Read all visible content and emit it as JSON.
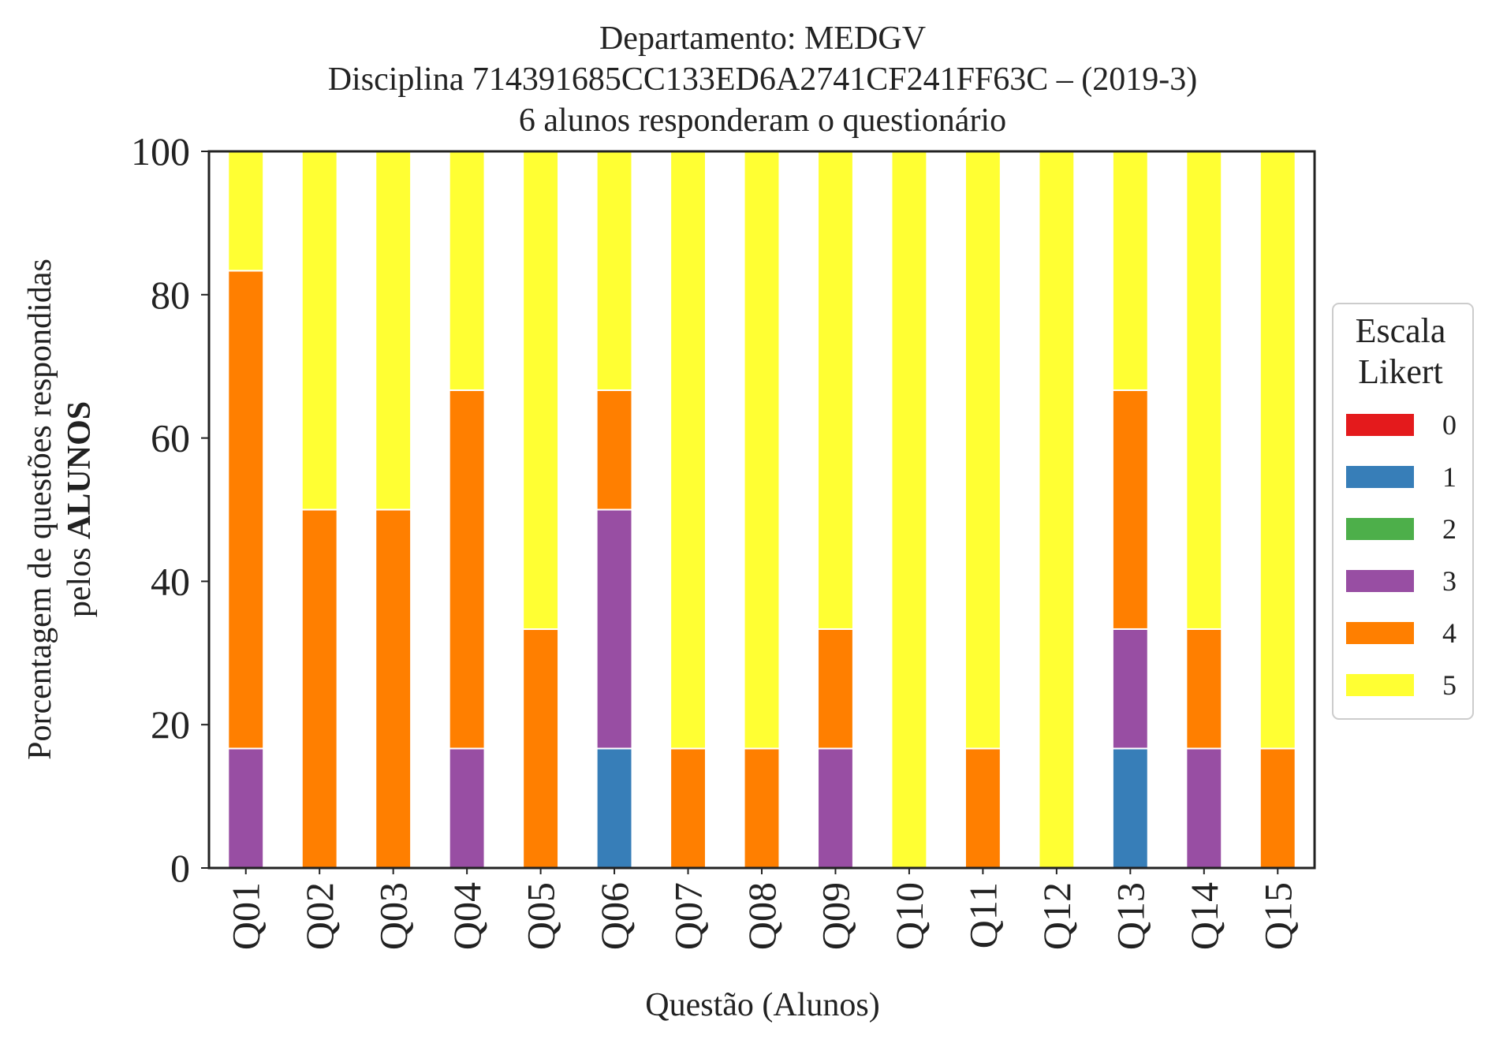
{
  "chart_data": {
    "type": "bar",
    "stacked": true,
    "title_lines": [
      "Departamento: MEDGV",
      "Disciplina 714391685CC133ED6A2741CF241FF63C – (2019-3)",
      "6 alunos responderam o questionário"
    ],
    "xlabel": "Questão (Alunos)",
    "ylabel_line1": "Porcentagem de questões respondidas",
    "ylabel_line2_prefix": "pelos ",
    "ylabel_line2_bold": "ALUNOS",
    "ylim": [
      0,
      100
    ],
    "yticks": [
      "0",
      "20",
      "40",
      "60",
      "80",
      "100"
    ],
    "grid": false,
    "categories": [
      "Q01",
      "Q02",
      "Q03",
      "Q04",
      "Q05",
      "Q06",
      "Q07",
      "Q08",
      "Q09",
      "Q10",
      "Q11",
      "Q12",
      "Q13",
      "Q14",
      "Q15"
    ],
    "legend": {
      "title_line1": "Escala",
      "title_line2": "Likert",
      "position": "center-right outside"
    },
    "series": [
      {
        "name": "0",
        "color": "#e41a1c",
        "values": [
          0,
          0,
          0,
          0,
          0,
          0,
          0,
          0,
          0,
          0,
          0,
          0,
          0,
          0,
          0
        ]
      },
      {
        "name": "1",
        "color": "#377eb8",
        "values": [
          0,
          0,
          0,
          0,
          0,
          16.67,
          0,
          0,
          0,
          0,
          0,
          0,
          16.67,
          0,
          0
        ]
      },
      {
        "name": "2",
        "color": "#4daf4a",
        "values": [
          0,
          0,
          0,
          0,
          0,
          0,
          0,
          0,
          0,
          0,
          0,
          0,
          0,
          0,
          0
        ]
      },
      {
        "name": "3",
        "color": "#984ea3",
        "values": [
          16.67,
          0,
          0,
          16.67,
          0,
          33.33,
          0,
          0,
          16.67,
          0,
          0,
          0,
          16.67,
          16.67,
          0
        ]
      },
      {
        "name": "4",
        "color": "#ff7f00",
        "values": [
          66.67,
          50,
          50,
          50,
          33.33,
          16.67,
          16.67,
          16.67,
          16.67,
          0,
          16.67,
          0,
          33.33,
          16.67,
          16.67
        ]
      },
      {
        "name": "5",
        "color": "#ffff33",
        "values": [
          16.67,
          50,
          50,
          33.33,
          66.67,
          33.33,
          83.33,
          83.33,
          66.67,
          100,
          83.33,
          100,
          33.33,
          66.67,
          83.33
        ]
      }
    ]
  }
}
